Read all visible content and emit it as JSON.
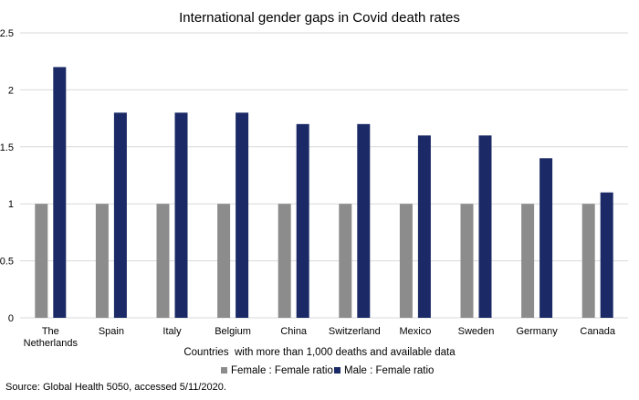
{
  "chart_data": {
    "type": "bar",
    "title": "International gender gaps in Covid death rates",
    "xlabel": "Countries  with more than 1,000 deaths and available data",
    "ylabel": "",
    "ylim": [
      0,
      2.5
    ],
    "yticks": [
      "0",
      "0.5",
      "1",
      "1.5",
      "2",
      "2.5"
    ],
    "grid": true,
    "legend_position": "bottom",
    "categories": [
      [
        "The",
        "Netherlands"
      ],
      [
        "Spain"
      ],
      [
        "Italy"
      ],
      [
        "Belgium"
      ],
      [
        "China"
      ],
      [
        "Switzerland"
      ],
      [
        "Mexico"
      ],
      [
        "Sweden"
      ],
      [
        "Germany"
      ],
      [
        "Canada"
      ]
    ],
    "series": [
      {
        "name": "Female : Female ratio",
        "color": "#8c8c8c",
        "values": [
          1,
          1,
          1,
          1,
          1,
          1,
          1,
          1,
          1,
          1
        ]
      },
      {
        "name": "Male : Female ratio",
        "color": "#1b2a66",
        "values": [
          2.2,
          1.8,
          1.8,
          1.8,
          1.7,
          1.7,
          1.6,
          1.6,
          1.4,
          1.1
        ]
      }
    ]
  },
  "source": "Source: Global Health 5050,  accessed 5/11/2020."
}
